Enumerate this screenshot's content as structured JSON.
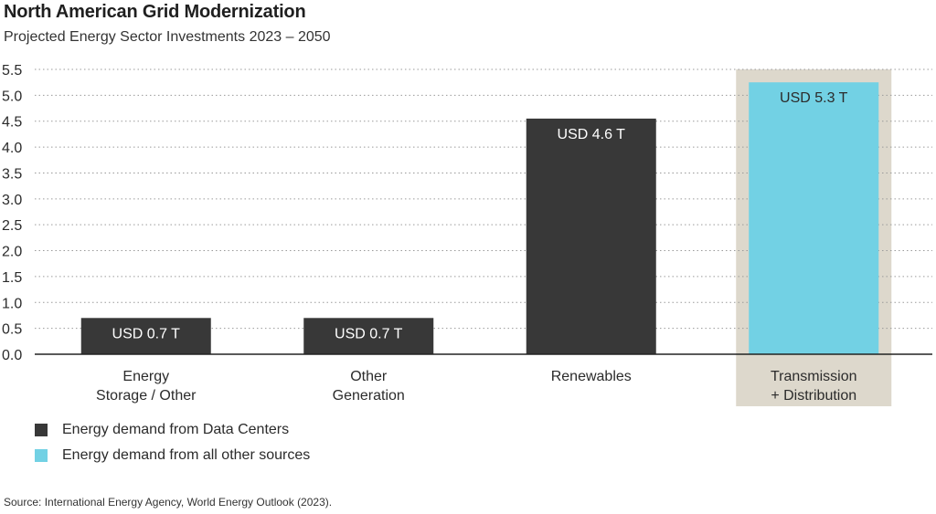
{
  "title": "North American Grid Modernization",
  "subtitle": "Projected Energy Sector Investments 2023 – 2050",
  "source": "Source: International Energy Agency, World Energy Outlook (2023).",
  "colors": {
    "data_centers": "#383838",
    "other_sources": "#72d1e4",
    "highlight_band": "#ddd8cc",
    "grid": "#9a9a9a",
    "axis": "#222222"
  },
  "legend": [
    {
      "label": "Energy demand from Data Centers",
      "color": "#383838"
    },
    {
      "label": "Energy demand from all other sources",
      "color": "#72d1e4"
    }
  ],
  "chart_data": {
    "type": "bar",
    "title": "North American Grid Modernization",
    "subtitle": "Projected Energy Sector Investments 2023 – 2050",
    "categories": [
      [
        "Energy",
        "Storage / Other"
      ],
      [
        "Other",
        "Generation"
      ],
      [
        "Renewables"
      ],
      [
        "Transmission",
        "+ Distribution"
      ]
    ],
    "values": [
      0.7,
      0.7,
      4.55,
      5.25
    ],
    "data_labels": [
      "USD 0.7 T",
      "USD 0.7 T",
      "USD 4.6 T",
      "USD 5.3 T"
    ],
    "series_of_bar": [
      "Energy demand from Data Centers",
      "Energy demand from Data Centers",
      "Energy demand from Data Centers",
      "Energy demand from all other sources"
    ],
    "highlighted_category_index": 3,
    "y_ticks": [
      "0.0",
      "0.5",
      "1.0",
      "1.5",
      "2.0",
      "2.5",
      "3.0",
      "3.5",
      "4.0",
      "4.5",
      "5.0",
      "5.5"
    ],
    "ylim": [
      0,
      5.5
    ],
    "grid": "horizontal dotted",
    "legend_position": "bottom-left"
  }
}
